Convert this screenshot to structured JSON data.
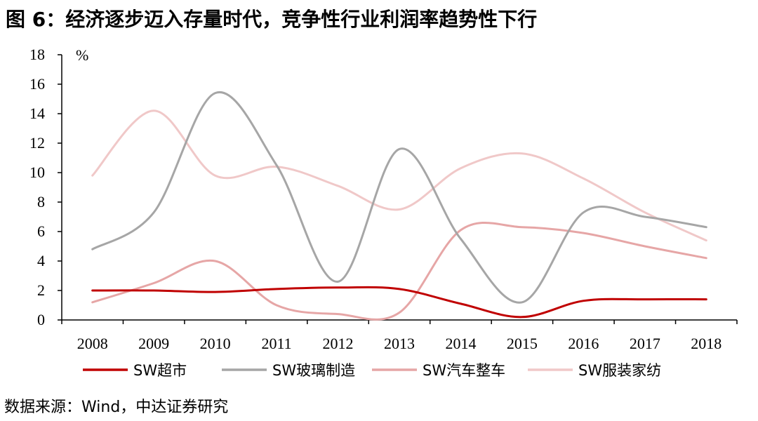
{
  "title": "图 6：经济逐步迈入存量时代，竞争性行业利润率趋势性下行",
  "source": "数据来源：Wind，中达证券研究",
  "chart_data": {
    "type": "line",
    "unit": "%",
    "x": [
      "2008",
      "2009",
      "2010",
      "2011",
      "2012",
      "2013",
      "2014",
      "2015",
      "2016",
      "2017",
      "2018"
    ],
    "ylim": [
      0,
      18
    ],
    "yticks": [
      0,
      2,
      4,
      6,
      8,
      10,
      12,
      14,
      16,
      18
    ],
    "grid": false,
    "legend_position": "bottom",
    "series": [
      {
        "name": "SW超市",
        "color": "#c00000",
        "values": [
          2.0,
          2.0,
          1.9,
          2.1,
          2.2,
          2.1,
          1.1,
          0.2,
          1.3,
          1.4,
          1.4
        ]
      },
      {
        "name": "SW玻璃制造",
        "color": "#a6a6a6",
        "values": [
          4.8,
          7.3,
          15.4,
          10.5,
          2.6,
          11.6,
          5.5,
          1.2,
          7.3,
          7.0,
          6.3
        ]
      },
      {
        "name": "SW汽车整车",
        "color": "#e6a6a6",
        "values": [
          1.2,
          2.5,
          4.0,
          1.0,
          0.4,
          0.5,
          6.1,
          6.3,
          5.9,
          5.0,
          4.2
        ]
      },
      {
        "name": "SW服装家纺",
        "color": "#f0c8c8",
        "values": [
          9.8,
          14.2,
          9.8,
          10.4,
          9.1,
          7.5,
          10.3,
          11.3,
          9.6,
          7.3,
          5.4
        ]
      }
    ]
  }
}
